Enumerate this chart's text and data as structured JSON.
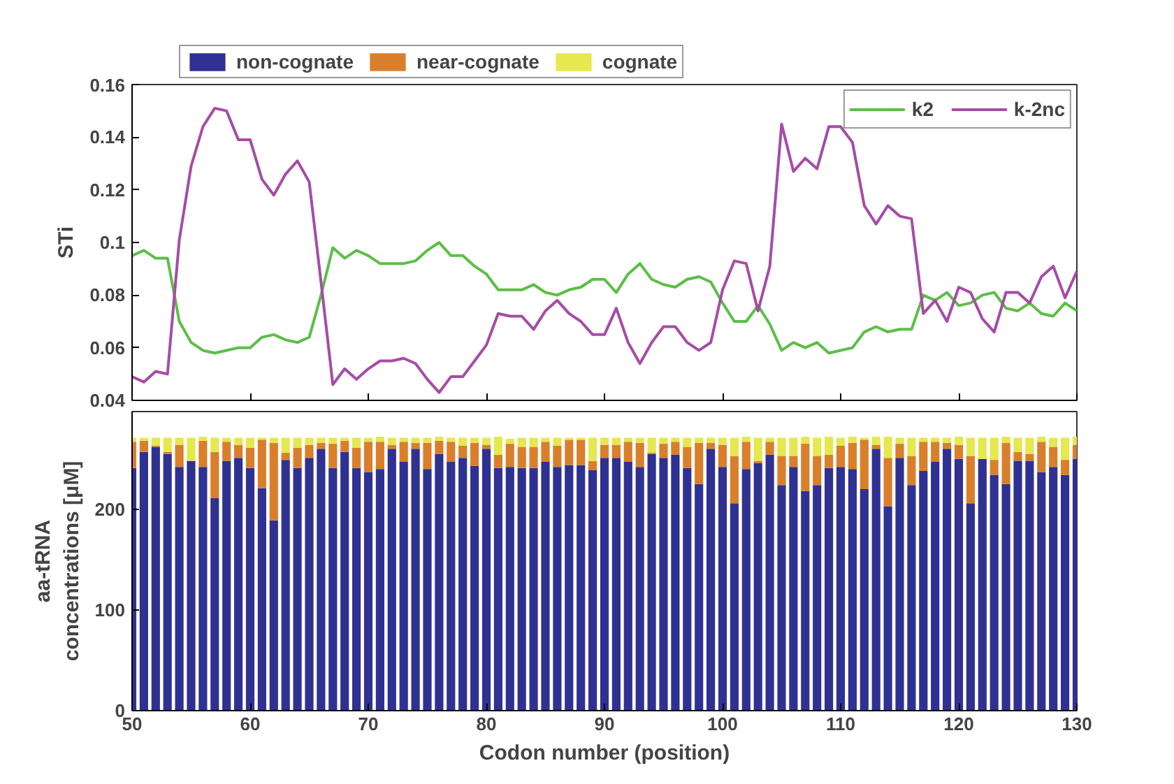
{
  "chart_data": [
    {
      "type": "line",
      "ylabel": "STi",
      "xlim": [
        50,
        130
      ],
      "xticks": [
        50,
        60,
        70,
        80,
        90,
        100,
        110,
        120,
        130
      ],
      "ylim": [
        0.04,
        0.16
      ],
      "yticks": [
        0.04,
        0.06,
        0.08,
        0.1,
        0.12,
        0.14,
        0.16
      ],
      "tick_labels": "y",
      "legend": "top right",
      "grid": false,
      "x": [
        50,
        51,
        52,
        53,
        54,
        55,
        56,
        57,
        58,
        59,
        60,
        61,
        62,
        63,
        64,
        65,
        66,
        67,
        68,
        69,
        70,
        71,
        72,
        73,
        74,
        75,
        76,
        77,
        78,
        79,
        80,
        81,
        82,
        83,
        84,
        85,
        86,
        87,
        88,
        89,
        90,
        91,
        92,
        93,
        94,
        95,
        96,
        97,
        98,
        99,
        100,
        101,
        102,
        103,
        104,
        105,
        106,
        107,
        108,
        109,
        110,
        111,
        112,
        113,
        114,
        115,
        116,
        117,
        118,
        119,
        120,
        121,
        122,
        123,
        124,
        125,
        126,
        127,
        128,
        129,
        130
      ],
      "series": [
        {
          "name": "k2",
          "color": "#5bbf46",
          "values": [
            0.095,
            0.097,
            0.094,
            0.094,
            0.07,
            0.062,
            0.059,
            0.058,
            0.059,
            0.06,
            0.06,
            0.064,
            0.065,
            0.063,
            0.062,
            0.064,
            0.08,
            0.098,
            0.094,
            0.097,
            0.095,
            0.092,
            0.092,
            0.092,
            0.093,
            0.097,
            0.1,
            0.095,
            0.095,
            0.091,
            0.088,
            0.082,
            0.082,
            0.082,
            0.084,
            0.081,
            0.08,
            0.082,
            0.083,
            0.086,
            0.086,
            0.081,
            0.088,
            0.092,
            0.086,
            0.084,
            0.083,
            0.086,
            0.087,
            0.085,
            0.077,
            0.07,
            0.07,
            0.076,
            0.069,
            0.059,
            0.062,
            0.06,
            0.062,
            0.058,
            0.059,
            0.06,
            0.066,
            0.068,
            0.066,
            0.067,
            0.067,
            0.08,
            0.078,
            0.081,
            0.076,
            0.077,
            0.08,
            0.081,
            0.075,
            0.074,
            0.077,
            0.073,
            0.072,
            0.077,
            0.074
          ]
        },
        {
          "name": "k-2nc",
          "color": "#a64ca6",
          "values": [
            0.049,
            0.047,
            0.051,
            0.05,
            0.101,
            0.129,
            0.144,
            0.151,
            0.15,
            0.139,
            0.139,
            0.124,
            0.118,
            0.126,
            0.131,
            0.123,
            0.085,
            0.046,
            0.052,
            0.048,
            0.052,
            0.055,
            0.055,
            0.056,
            0.054,
            0.048,
            0.043,
            0.049,
            0.049,
            0.055,
            0.061,
            0.073,
            0.072,
            0.072,
            0.067,
            0.074,
            0.078,
            0.073,
            0.07,
            0.065,
            0.065,
            0.075,
            0.062,
            0.054,
            0.062,
            0.068,
            0.068,
            0.062,
            0.059,
            0.062,
            0.082,
            0.093,
            0.092,
            0.074,
            0.091,
            0.145,
            0.127,
            0.132,
            0.128,
            0.144,
            0.144,
            0.138,
            0.114,
            0.107,
            0.114,
            0.11,
            0.109,
            0.073,
            0.078,
            0.07,
            0.083,
            0.081,
            0.071,
            0.066,
            0.081,
            0.081,
            0.077,
            0.087,
            0.091,
            0.079,
            0.089
          ]
        }
      ]
    },
    {
      "type": "bar",
      "stacked": true,
      "xlabel": "Codon number (position)",
      "ylabel": "aa-tRNA\nconcentrations [μM]",
      "xlim": [
        50,
        130
      ],
      "xticks": [
        50,
        60,
        70,
        80,
        90,
        100,
        110,
        120,
        130
      ],
      "ylim": [
        0,
        297
      ],
      "yticks": [
        0,
        100,
        200
      ],
      "legend": "top",
      "grid": false,
      "x": [
        50,
        51,
        52,
        53,
        54,
        55,
        56,
        57,
        58,
        59,
        60,
        61,
        62,
        63,
        64,
        65,
        66,
        67,
        68,
        69,
        70,
        71,
        72,
        73,
        74,
        75,
        76,
        77,
        78,
        79,
        80,
        81,
        82,
        83,
        84,
        85,
        86,
        87,
        88,
        89,
        90,
        91,
        92,
        93,
        94,
        95,
        96,
        97,
        98,
        99,
        100,
        101,
        102,
        103,
        104,
        105,
        106,
        107,
        108,
        109,
        110,
        111,
        112,
        113,
        114,
        115,
        116,
        117,
        118,
        119,
        120,
        121,
        122,
        123,
        124,
        125,
        126,
        127,
        128,
        129,
        130
      ],
      "series": [
        {
          "name": "non-cognate",
          "color": "#2f3192",
          "values": [
            241,
            257,
            262,
            255,
            242,
            248,
            242,
            211,
            248,
            251,
            241,
            221,
            189,
            249,
            241,
            251,
            260,
            241,
            257,
            241,
            237,
            240,
            260,
            247,
            260,
            240,
            255,
            247,
            251,
            243,
            260,
            241,
            242,
            241,
            241,
            247,
            242,
            244,
            244,
            239,
            251,
            251,
            247,
            242,
            255,
            251,
            254,
            241,
            225,
            260,
            242,
            206,
            240,
            246,
            254,
            224,
            242,
            218,
            224,
            241,
            242,
            240,
            220,
            260,
            203,
            251,
            224,
            238,
            247,
            260,
            250,
            206,
            250,
            234,
            225,
            248,
            248,
            237,
            242,
            234,
            250
          ]
        },
        {
          "name": "near-cognate",
          "color": "#d97f2b",
          "values": [
            26,
            11,
            1,
            2,
            22,
            0,
            26,
            46,
            19,
            13,
            20,
            48,
            77,
            7,
            20,
            13,
            6,
            24,
            11,
            20,
            30,
            27,
            4,
            20,
            6,
            26,
            13,
            20,
            12,
            23,
            4,
            13,
            23,
            21,
            21,
            20,
            21,
            25,
            25,
            9,
            13,
            13,
            20,
            24,
            1,
            14,
            13,
            21,
            41,
            6,
            22,
            47,
            27,
            2,
            13,
            29,
            11,
            47,
            29,
            13,
            21,
            26,
            49,
            4,
            48,
            14,
            29,
            29,
            20,
            6,
            14,
            47,
            0,
            15,
            41,
            9,
            7,
            30,
            20,
            15,
            14
          ]
        },
        {
          "name": "cognate",
          "color": "#e5e84e",
          "values": [
            4,
            3,
            8,
            14,
            7,
            23,
            4,
            14,
            4,
            7,
            10,
            2,
            5,
            15,
            10,
            7,
            5,
            6,
            3,
            10,
            4,
            5,
            7,
            4,
            5,
            5,
            4,
            4,
            8,
            5,
            7,
            18,
            5,
            9,
            9,
            4,
            8,
            2,
            2,
            23,
            7,
            7,
            4,
            5,
            15,
            6,
            4,
            9,
            5,
            5,
            7,
            18,
            5,
            23,
            4,
            18,
            18,
            7,
            18,
            18,
            8,
            6,
            2,
            8,
            21,
            6,
            18,
            4,
            4,
            5,
            8,
            18,
            21,
            22,
            6,
            14,
            16,
            5,
            9,
            22,
            8
          ]
        }
      ]
    }
  ]
}
